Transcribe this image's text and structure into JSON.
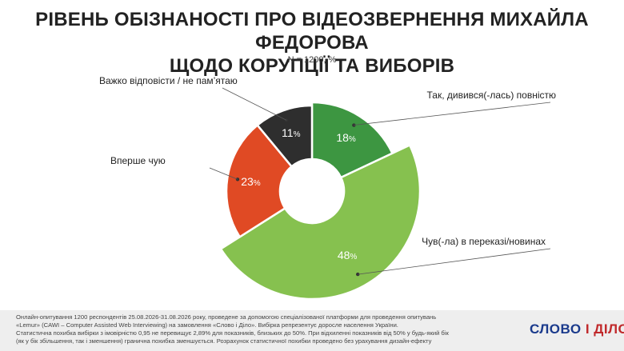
{
  "title_line1": "РІВЕНЬ ОБІЗНАНОСТІ ПРО ВІДЕОЗВЕРНЕННЯ МИХАЙЛА ФЕДОРОВА",
  "title_line2": "ЩОДО КОРУПЦІЇ ТА ВИБОРІВ",
  "subtitle": "N = 1200, %",
  "chart_data": {
    "type": "pie",
    "donut": true,
    "unit": "%",
    "slices": [
      {
        "label": "Так, дивився(-лась) повністю",
        "value": 18,
        "color": "#3d9641"
      },
      {
        "label": "Чув(-ла) в переказі/новинах",
        "value": 48,
        "color": "#86c14f"
      },
      {
        "label": "Вперше чую",
        "value": 23,
        "color": "#e04a24"
      },
      {
        "label": "Важко відповісти / не пам’ятаю",
        "value": 11,
        "color": "#2e2e2e"
      }
    ]
  },
  "footer_lines": [
    "Онлайн-опитування 1200 респондентів 25.08.2026-31.08.2026 року, проведене за допомогою спеціалізованої платформи для проведення опитувань",
    "«Lemur» (CAWI – Computer Assisted Web Interviewing) на замовлення «Слово і Діло». Вибірка репрезентує доросле населення України.",
    "Статистична похибка вибірки з імовірністю 0,95 не перевищує 2,89% для показників, близьких до 50%. При відхиленні показників від 50% у будь-який бік",
    "(як у бік збільшення, так і зменшення) гранична похибка зменшується. Розрахунок статистичної похибки проведено без урахування дизайн-ефекту"
  ],
  "logo": {
    "part1": "СЛОВО",
    "part2": "І ДІЛО"
  }
}
